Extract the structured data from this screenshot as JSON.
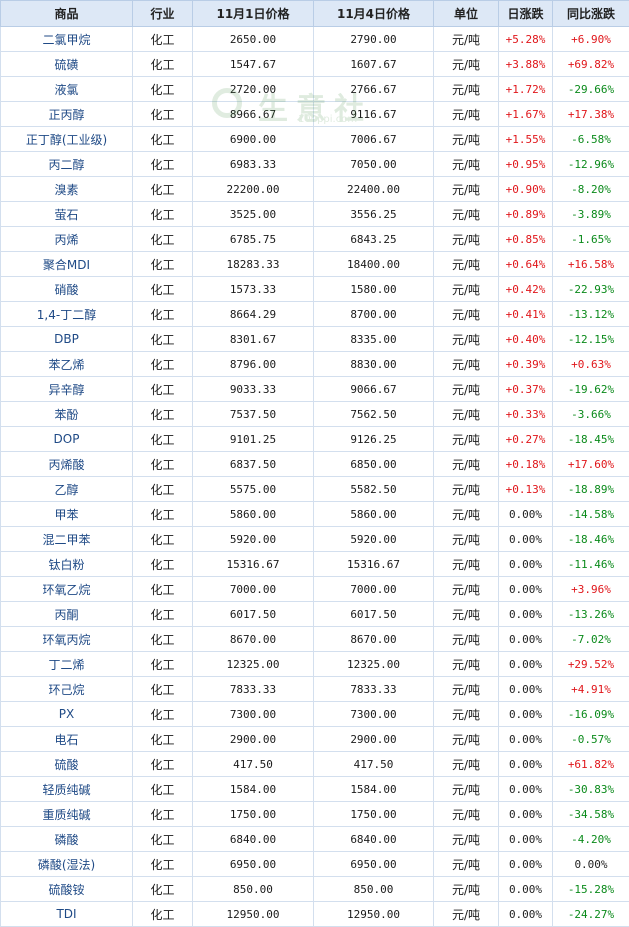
{
  "table": {
    "headers": [
      "商品",
      "行业",
      "11月1日价格",
      "11月4日价格",
      "单位",
      "日涨跌",
      "同比涨跌"
    ],
    "rows": [
      [
        "二氯甲烷",
        "化工",
        "2650.00",
        "2790.00",
        "元/吨",
        "+5.28%",
        "+6.90%"
      ],
      [
        "硫磺",
        "化工",
        "1547.67",
        "1607.67",
        "元/吨",
        "+3.88%",
        "+69.82%"
      ],
      [
        "液氯",
        "化工",
        "2720.00",
        "2766.67",
        "元/吨",
        "+1.72%",
        "-29.66%"
      ],
      [
        "正丙醇",
        "化工",
        "8966.67",
        "9116.67",
        "元/吨",
        "+1.67%",
        "+17.38%"
      ],
      [
        "正丁醇(工业级)",
        "化工",
        "6900.00",
        "7006.67",
        "元/吨",
        "+1.55%",
        "-6.58%"
      ],
      [
        "丙二醇",
        "化工",
        "6983.33",
        "7050.00",
        "元/吨",
        "+0.95%",
        "-12.96%"
      ],
      [
        "溴素",
        "化工",
        "22200.00",
        "22400.00",
        "元/吨",
        "+0.90%",
        "-8.20%"
      ],
      [
        "萤石",
        "化工",
        "3525.00",
        "3556.25",
        "元/吨",
        "+0.89%",
        "-3.89%"
      ],
      [
        "丙烯",
        "化工",
        "6785.75",
        "6843.25",
        "元/吨",
        "+0.85%",
        "-1.65%"
      ],
      [
        "聚合MDI",
        "化工",
        "18283.33",
        "18400.00",
        "元/吨",
        "+0.64%",
        "+16.58%"
      ],
      [
        "硝酸",
        "化工",
        "1573.33",
        "1580.00",
        "元/吨",
        "+0.42%",
        "-22.93%"
      ],
      [
        "1,4-丁二醇",
        "化工",
        "8664.29",
        "8700.00",
        "元/吨",
        "+0.41%",
        "-13.12%"
      ],
      [
        "DBP",
        "化工",
        "8301.67",
        "8335.00",
        "元/吨",
        "+0.40%",
        "-12.15%"
      ],
      [
        "苯乙烯",
        "化工",
        "8796.00",
        "8830.00",
        "元/吨",
        "+0.39%",
        "+0.63%"
      ],
      [
        "异辛醇",
        "化工",
        "9033.33",
        "9066.67",
        "元/吨",
        "+0.37%",
        "-19.62%"
      ],
      [
        "苯酚",
        "化工",
        "7537.50",
        "7562.50",
        "元/吨",
        "+0.33%",
        "-3.66%"
      ],
      [
        "DOP",
        "化工",
        "9101.25",
        "9126.25",
        "元/吨",
        "+0.27%",
        "-18.45%"
      ],
      [
        "丙烯酸",
        "化工",
        "6837.50",
        "6850.00",
        "元/吨",
        "+0.18%",
        "+17.60%"
      ],
      [
        "乙醇",
        "化工",
        "5575.00",
        "5582.50",
        "元/吨",
        "+0.13%",
        "-18.89%"
      ],
      [
        "甲苯",
        "化工",
        "5860.00",
        "5860.00",
        "元/吨",
        "0.00%",
        "-14.58%"
      ],
      [
        "混二甲苯",
        "化工",
        "5920.00",
        "5920.00",
        "元/吨",
        "0.00%",
        "-18.46%"
      ],
      [
        "钛白粉",
        "化工",
        "15316.67",
        "15316.67",
        "元/吨",
        "0.00%",
        "-11.46%"
      ],
      [
        "环氧乙烷",
        "化工",
        "7000.00",
        "7000.00",
        "元/吨",
        "0.00%",
        "+3.96%"
      ],
      [
        "丙酮",
        "化工",
        "6017.50",
        "6017.50",
        "元/吨",
        "0.00%",
        "-13.26%"
      ],
      [
        "环氧丙烷",
        "化工",
        "8670.00",
        "8670.00",
        "元/吨",
        "0.00%",
        "-7.02%"
      ],
      [
        "丁二烯",
        "化工",
        "12325.00",
        "12325.00",
        "元/吨",
        "0.00%",
        "+29.52%"
      ],
      [
        "环己烷",
        "化工",
        "7833.33",
        "7833.33",
        "元/吨",
        "0.00%",
        "+4.91%"
      ],
      [
        "PX",
        "化工",
        "7300.00",
        "7300.00",
        "元/吨",
        "0.00%",
        "-16.09%"
      ],
      [
        "电石",
        "化工",
        "2900.00",
        "2900.00",
        "元/吨",
        "0.00%",
        "-0.57%"
      ],
      [
        "硫酸",
        "化工",
        "417.50",
        "417.50",
        "元/吨",
        "0.00%",
        "+61.82%"
      ],
      [
        "轻质纯碱",
        "化工",
        "1584.00",
        "1584.00",
        "元/吨",
        "0.00%",
        "-30.83%"
      ],
      [
        "重质纯碱",
        "化工",
        "1750.00",
        "1750.00",
        "元/吨",
        "0.00%",
        "-34.58%"
      ],
      [
        "磷酸",
        "化工",
        "6840.00",
        "6840.00",
        "元/吨",
        "0.00%",
        "-4.20%"
      ],
      [
        "磷酸(湿法)",
        "化工",
        "6950.00",
        "6950.00",
        "元/吨",
        "0.00%",
        "0.00%"
      ],
      [
        "硫酸铵",
        "化工",
        "850.00",
        "850.00",
        "元/吨",
        "0.00%",
        "-15.28%"
      ],
      [
        "TDI",
        "化工",
        "12950.00",
        "12950.00",
        "元/吨",
        "0.00%",
        "-24.27%"
      ]
    ]
  },
  "watermark": {
    "text": "生意社",
    "url": "100ppi.com"
  },
  "colors": {
    "up": "#e0161a",
    "down": "#0a8a1a",
    "header_bg": "#dde8f6"
  }
}
